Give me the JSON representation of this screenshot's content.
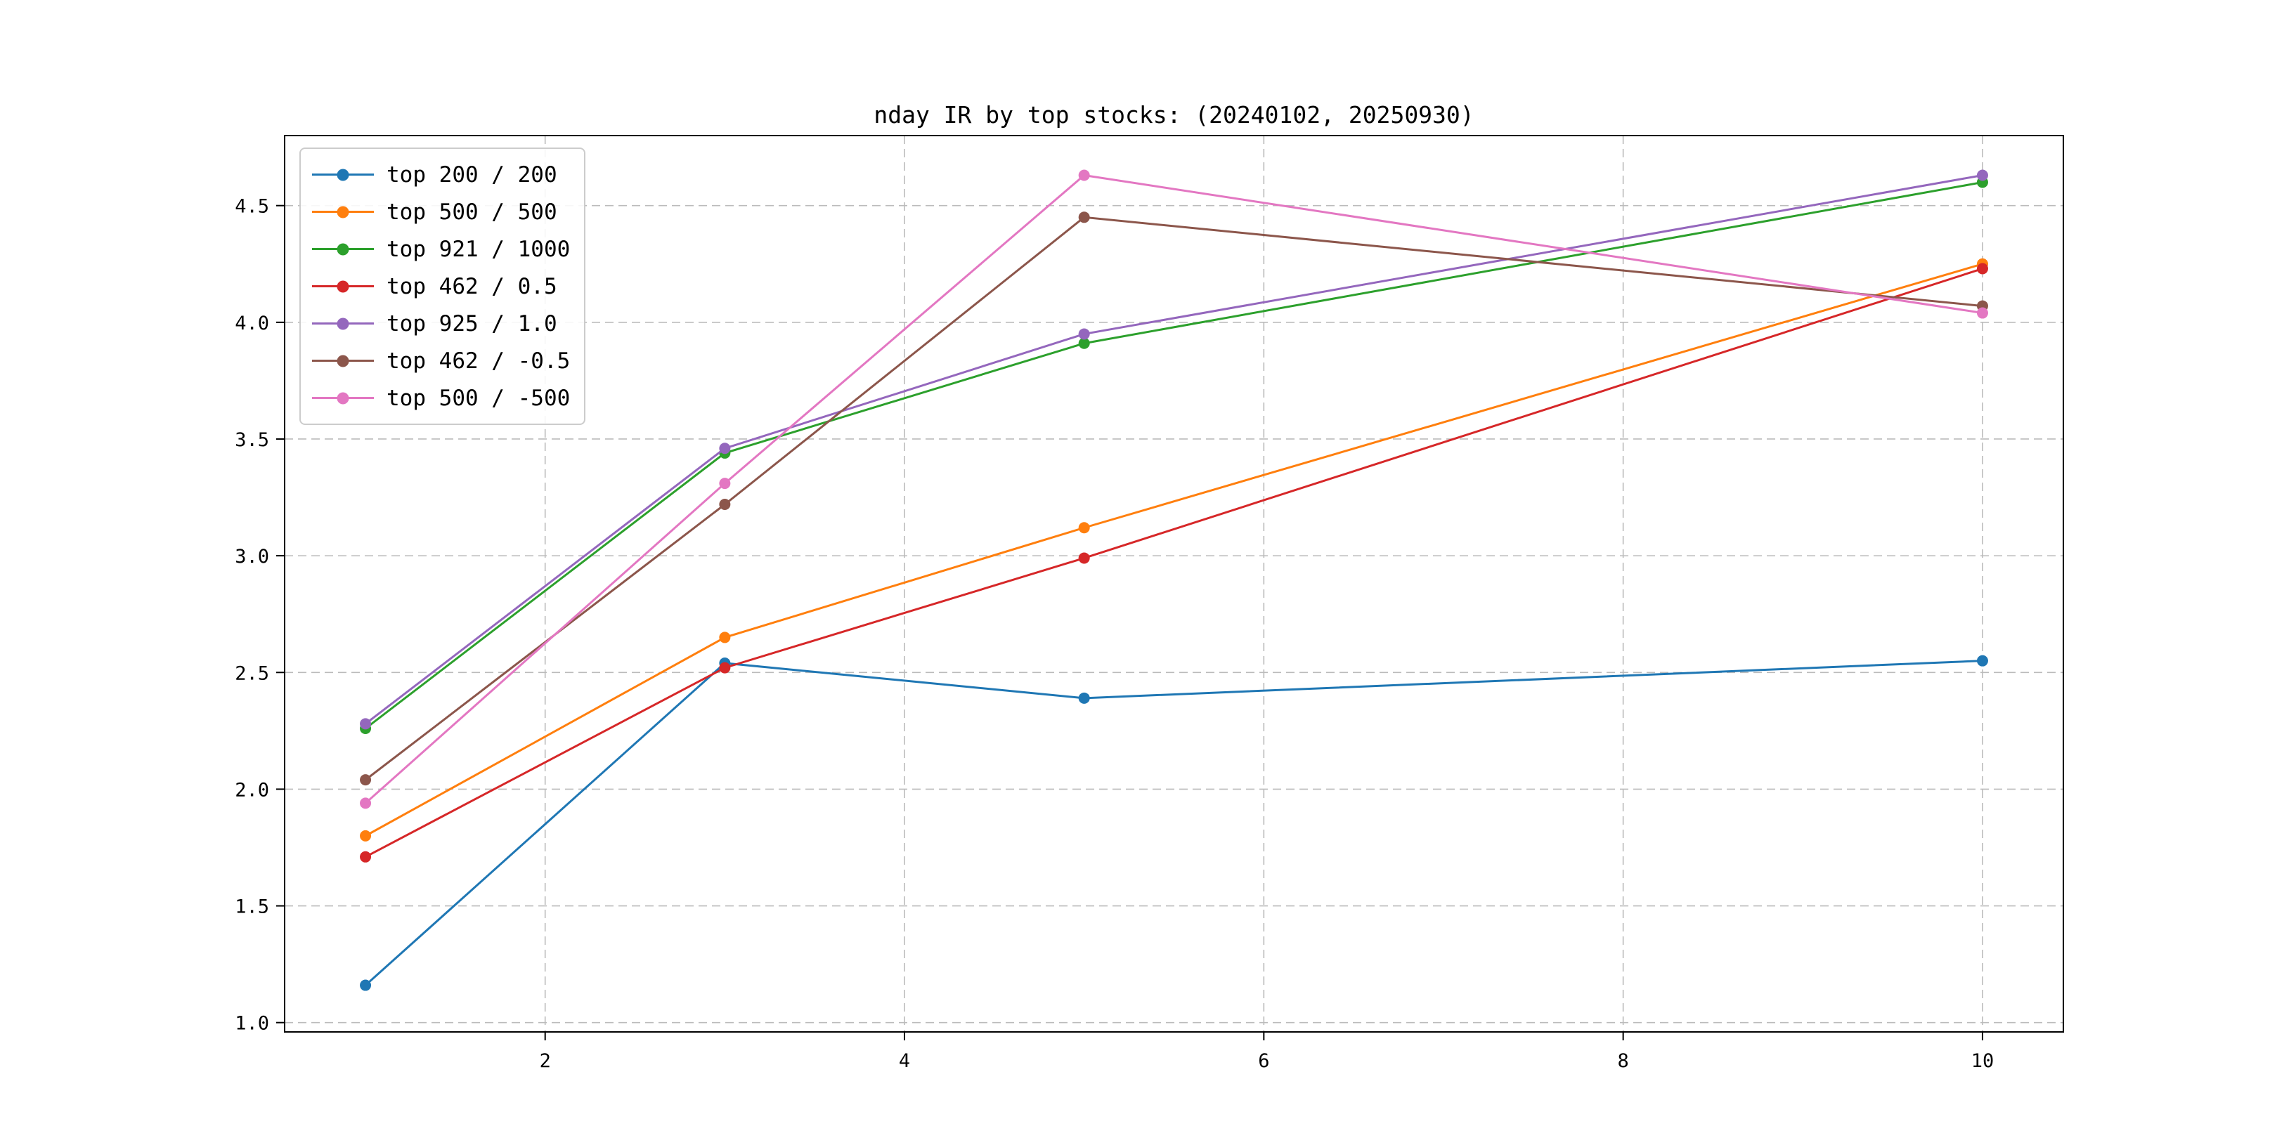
{
  "chart_data": {
    "type": "line",
    "title": "nday IR by top stocks: (20240102, 20250930)",
    "x": [
      1,
      3,
      5,
      10
    ],
    "series": [
      {
        "name": "top 200 / 200",
        "color": "#1f77b4",
        "values": [
          1.16,
          2.54,
          2.39,
          2.55
        ]
      },
      {
        "name": "top 500 / 500",
        "color": "#ff7f0e",
        "values": [
          1.8,
          2.65,
          3.12,
          4.25
        ]
      },
      {
        "name": "top 921 / 1000",
        "color": "#2ca02c",
        "values": [
          2.26,
          3.44,
          3.91,
          4.6
        ]
      },
      {
        "name": "top 462 / 0.5",
        "color": "#d62728",
        "values": [
          1.71,
          2.52,
          2.99,
          4.23
        ]
      },
      {
        "name": "top 925 / 1.0",
        "color": "#9467bd",
        "values": [
          2.28,
          3.46,
          3.95,
          4.63
        ]
      },
      {
        "name": "top 462 / -0.5",
        "color": "#8c564b",
        "values": [
          2.04,
          3.22,
          4.45,
          4.07
        ]
      },
      {
        "name": "top 500 / -500",
        "color": "#e377c2",
        "values": [
          1.94,
          3.31,
          4.63,
          4.04
        ]
      }
    ],
    "xticks": [
      2,
      4,
      6,
      8,
      10
    ],
    "xtick_labels": [
      "2",
      "4",
      "6",
      "8",
      "10"
    ],
    "yticks": [
      1.0,
      1.5,
      2.0,
      2.5,
      3.0,
      3.5,
      4.0,
      4.5
    ],
    "ytick_labels": [
      "1.0",
      "1.5",
      "2.0",
      "2.5",
      "3.0",
      "3.5",
      "4.0",
      "4.5"
    ],
    "xlim": [
      0.55,
      10.45
    ],
    "ylim": [
      0.96,
      4.8
    ],
    "grid": true,
    "grid_style": "dashed",
    "legend_position": "upper left",
    "marker": "circle"
  }
}
